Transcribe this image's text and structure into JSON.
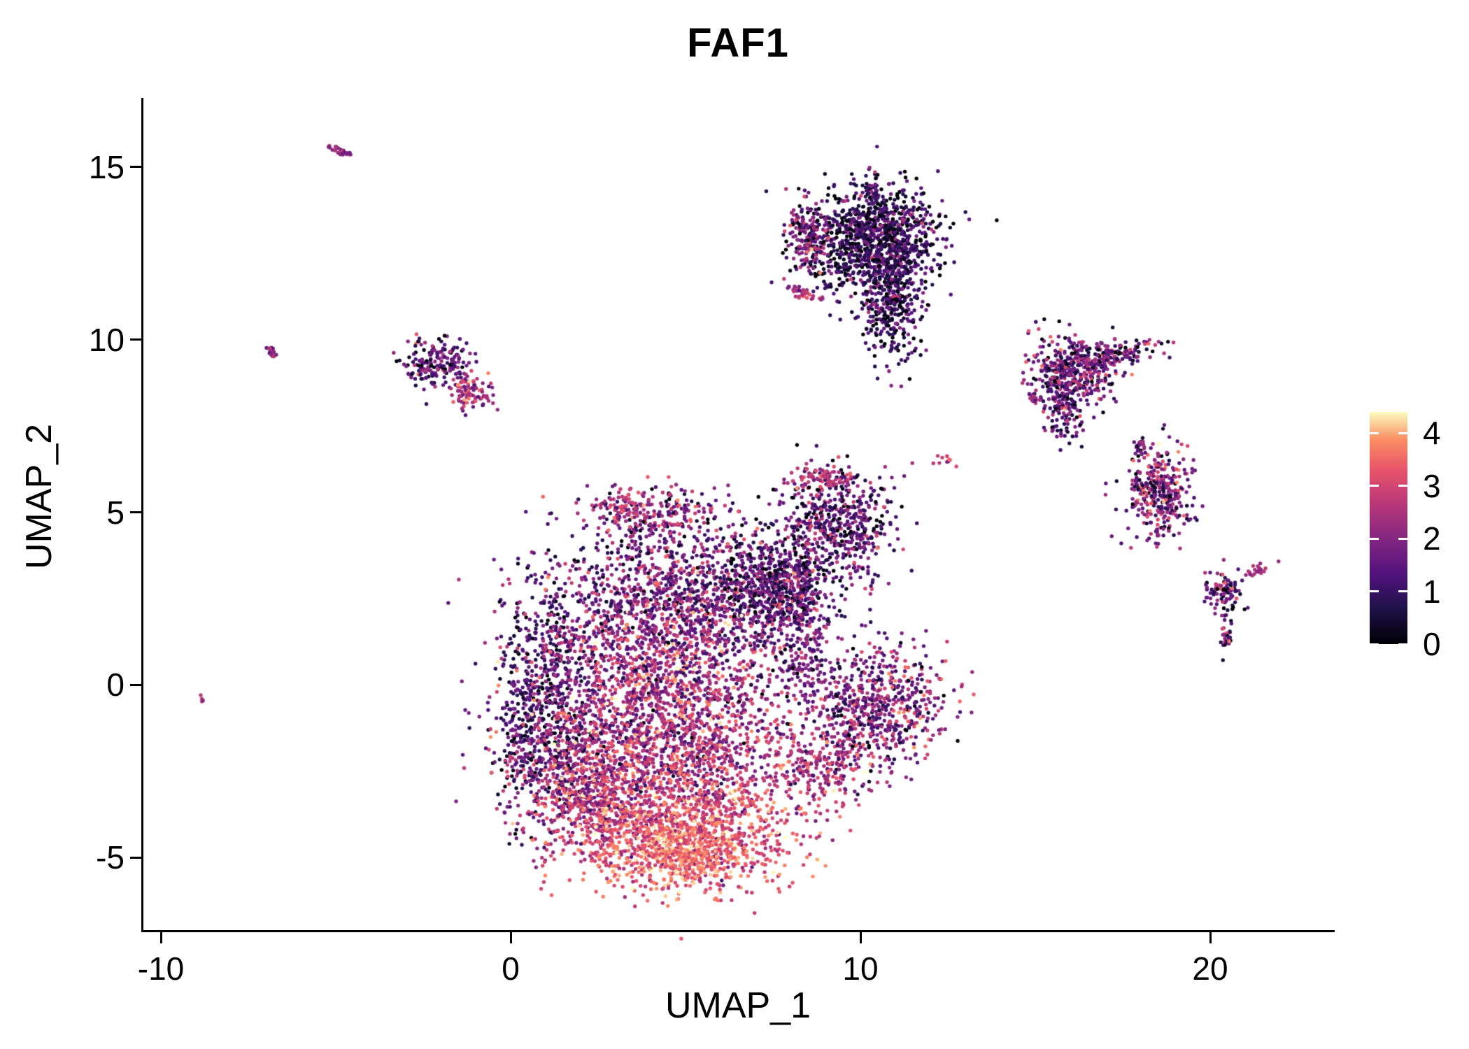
{
  "figure": {
    "background": "#ffffff"
  },
  "chart_data": {
    "type": "scatter",
    "title": "FAF1",
    "xlabel": "UMAP_1",
    "ylabel": "UMAP_2",
    "xlim": [
      -10.5,
      23.5
    ],
    "ylim": [
      -7.1,
      17.0
    ],
    "xticks": [
      -10,
      0,
      10,
      20
    ],
    "yticks": [
      -5,
      0,
      5,
      10,
      15
    ],
    "grid": false,
    "point_radius": 2.7,
    "seed": 42,
    "legend": {
      "position": "right",
      "ticks": [
        0,
        1,
        2,
        3,
        4
      ],
      "max_value": 4.4,
      "colormap": "magma",
      "stops": [
        [
          0.0,
          "#000004"
        ],
        [
          0.15,
          "#1d1147"
        ],
        [
          0.3,
          "#51127c"
        ],
        [
          0.45,
          "#822681"
        ],
        [
          0.6,
          "#b73779"
        ],
        [
          0.75,
          "#e8536a"
        ],
        [
          0.88,
          "#fb8d62"
        ],
        [
          1.0,
          "#fcfdbf"
        ]
      ]
    },
    "clusters": [
      {
        "name": "main-left-dark",
        "cx": 0.9,
        "cy": -0.8,
        "sx": 0.7,
        "sy": 1.6,
        "n": 700,
        "mean": 1.1,
        "sd": 0.8
      },
      {
        "name": "main-upper",
        "cx": 4.6,
        "cy": 2.6,
        "sx": 2.0,
        "sy": 0.9,
        "n": 1000,
        "mean": 1.7,
        "sd": 0.9
      },
      {
        "name": "main-right-upper",
        "cx": 7.3,
        "cy": 2.8,
        "sx": 0.8,
        "sy": 0.8,
        "n": 450,
        "mean": 1.3,
        "sd": 0.8
      },
      {
        "name": "main-center",
        "cx": 4.2,
        "cy": 0.6,
        "sx": 1.8,
        "sy": 1.0,
        "n": 1000,
        "mean": 2.2,
        "sd": 0.9
      },
      {
        "name": "main-mid",
        "cx": 4.5,
        "cy": -1.8,
        "sx": 2.0,
        "sy": 1.0,
        "n": 1300,
        "mean": 2.4,
        "sd": 0.8
      },
      {
        "name": "main-bottom-left",
        "cx": 2.2,
        "cy": -3.2,
        "sx": 0.9,
        "sy": 0.8,
        "n": 500,
        "mean": 2.6,
        "sd": 0.8
      },
      {
        "name": "main-bottom",
        "cx": 4.8,
        "cy": -4.2,
        "sx": 1.6,
        "sy": 0.85,
        "n": 1100,
        "mean": 3.1,
        "sd": 0.6
      },
      {
        "name": "main-bottom-core",
        "cx": 5.0,
        "cy": -4.9,
        "sx": 1.0,
        "sy": 0.5,
        "n": 400,
        "mean": 3.6,
        "sd": 0.45
      },
      {
        "name": "main-top-arm",
        "cx": 4.3,
        "cy": 4.9,
        "sx": 1.1,
        "sy": 0.45,
        "n": 250,
        "mean": 1.9,
        "sd": 0.9
      },
      {
        "name": "main-top-arm-tip",
        "cx": 3.3,
        "cy": 5.15,
        "sx": 0.3,
        "sy": 0.22,
        "n": 60,
        "mean": 2.8,
        "sd": 0.5
      },
      {
        "name": "main-neck",
        "cx": 8.3,
        "cy": 0.9,
        "sx": 0.5,
        "sy": 0.7,
        "n": 150,
        "mean": 1.6,
        "sd": 0.8
      },
      {
        "name": "right-lobe",
        "cx": 10.4,
        "cy": -0.6,
        "sx": 1.0,
        "sy": 0.9,
        "n": 650,
        "mean": 1.9,
        "sd": 0.9
      },
      {
        "name": "right-lobe-tail",
        "cx": 8.9,
        "cy": -2.5,
        "sx": 0.7,
        "sy": 0.6,
        "n": 200,
        "mean": 2.4,
        "sd": 0.7
      },
      {
        "name": "bridge",
        "cx": 8.0,
        "cy": 2.7,
        "sx": 0.5,
        "sy": 0.7,
        "n": 200,
        "mean": 1.4,
        "sd": 0.8
      },
      {
        "name": "mid-cluster",
        "cx": 9.3,
        "cy": 4.7,
        "sx": 0.85,
        "sy": 0.8,
        "n": 550,
        "mean": 1.35,
        "sd": 0.9
      },
      {
        "name": "mid-cluster-top",
        "cx": 8.9,
        "cy": 6.0,
        "sx": 0.5,
        "sy": 0.18,
        "n": 80,
        "mean": 2.6,
        "sd": 0.6
      },
      {
        "name": "top-cluster",
        "cx": 10.4,
        "cy": 12.9,
        "sx": 1.0,
        "sy": 0.75,
        "n": 1100,
        "mean": 0.85,
        "sd": 0.75
      },
      {
        "name": "top-cluster-lower",
        "cx": 10.9,
        "cy": 10.9,
        "sx": 0.45,
        "sy": 0.75,
        "n": 350,
        "mean": 0.9,
        "sd": 0.7
      },
      {
        "name": "top-cluster-left",
        "cx": 8.55,
        "cy": 13.0,
        "sx": 0.3,
        "sy": 0.55,
        "n": 150,
        "mean": 1.9,
        "sd": 0.9
      },
      {
        "name": "top-cluster-spur",
        "cx": 10.35,
        "cy": 14.3,
        "sx": 0.12,
        "sy": 0.28,
        "n": 30,
        "mean": 1.3,
        "sd": 0.6
      },
      {
        "name": "top-cluster-dash",
        "cx": 8.35,
        "cy": 11.35,
        "sx": 0.22,
        "sy": 0.09,
        "rot": -20,
        "n": 40,
        "mean": 2.4,
        "sd": 0.5
      },
      {
        "name": "left-cluster",
        "cx": -2.1,
        "cy": 9.3,
        "sx": 0.45,
        "sy": 0.35,
        "n": 180,
        "mean": 1.3,
        "sd": 0.8
      },
      {
        "name": "left-cluster-lower",
        "cx": -1.15,
        "cy": 8.45,
        "sx": 0.3,
        "sy": 0.25,
        "n": 90,
        "mean": 2.4,
        "sd": 0.7
      },
      {
        "name": "far-left-dash-top",
        "cx": -4.85,
        "cy": 15.45,
        "sx": 0.18,
        "sy": 0.05,
        "rot": -25,
        "n": 25,
        "mean": 2.2,
        "sd": 0.4
      },
      {
        "name": "far-left-dash",
        "cx": -6.85,
        "cy": 9.65,
        "sx": 0.1,
        "sy": 0.05,
        "rot": -50,
        "n": 20,
        "mean": 2.0,
        "sd": 0.5
      },
      {
        "name": "far-left-dot",
        "cx": -8.85,
        "cy": -0.45,
        "sx": 0.06,
        "sy": 0.05,
        "n": 4,
        "mean": 2.3,
        "sd": 0.3
      },
      {
        "name": "mid-right-dots",
        "cx": 12.5,
        "cy": 6.5,
        "sx": 0.18,
        "sy": 0.09,
        "n": 10,
        "mean": 2.7,
        "sd": 0.5
      },
      {
        "name": "right-cluster-1",
        "cx": 16.1,
        "cy": 9.1,
        "sx": 0.6,
        "sy": 0.5,
        "n": 400,
        "mean": 1.6,
        "sd": 0.9
      },
      {
        "name": "right-cluster-1-arm",
        "cx": 17.4,
        "cy": 9.55,
        "sx": 0.65,
        "sy": 0.17,
        "rot": 12,
        "n": 130,
        "mean": 1.5,
        "sd": 0.9
      },
      {
        "name": "right-cluster-1-tail",
        "cx": 15.85,
        "cy": 8.0,
        "sx": 0.3,
        "sy": 0.45,
        "n": 120,
        "mean": 1.4,
        "sd": 0.8
      },
      {
        "name": "right-cluster-1-dot",
        "cx": 14.95,
        "cy": 8.3,
        "sx": 0.1,
        "sy": 0.08,
        "n": 15,
        "mean": 2.2,
        "sd": 0.5
      },
      {
        "name": "right-cluster-2",
        "cx": 18.6,
        "cy": 5.6,
        "sx": 0.45,
        "sy": 0.65,
        "n": 350,
        "mean": 1.8,
        "sd": 0.9
      },
      {
        "name": "right-cluster-2-top",
        "cx": 18.0,
        "cy": 6.9,
        "sx": 0.12,
        "sy": 0.1,
        "n": 20,
        "mean": 1.6,
        "sd": 0.6
      },
      {
        "name": "right-cluster-3",
        "cx": 20.4,
        "cy": 2.7,
        "sx": 0.28,
        "sy": 0.35,
        "n": 90,
        "mean": 1.5,
        "sd": 1.0
      },
      {
        "name": "right-cluster-3-tail",
        "cx": 20.5,
        "cy": 1.35,
        "sx": 0.1,
        "sy": 0.25,
        "n": 25,
        "mean": 1.6,
        "sd": 0.8
      },
      {
        "name": "right-cluster-3-dash",
        "cx": 21.3,
        "cy": 3.3,
        "sx": 0.25,
        "sy": 0.07,
        "rot": 20,
        "n": 20,
        "mean": 2.3,
        "sd": 0.4
      }
    ]
  }
}
